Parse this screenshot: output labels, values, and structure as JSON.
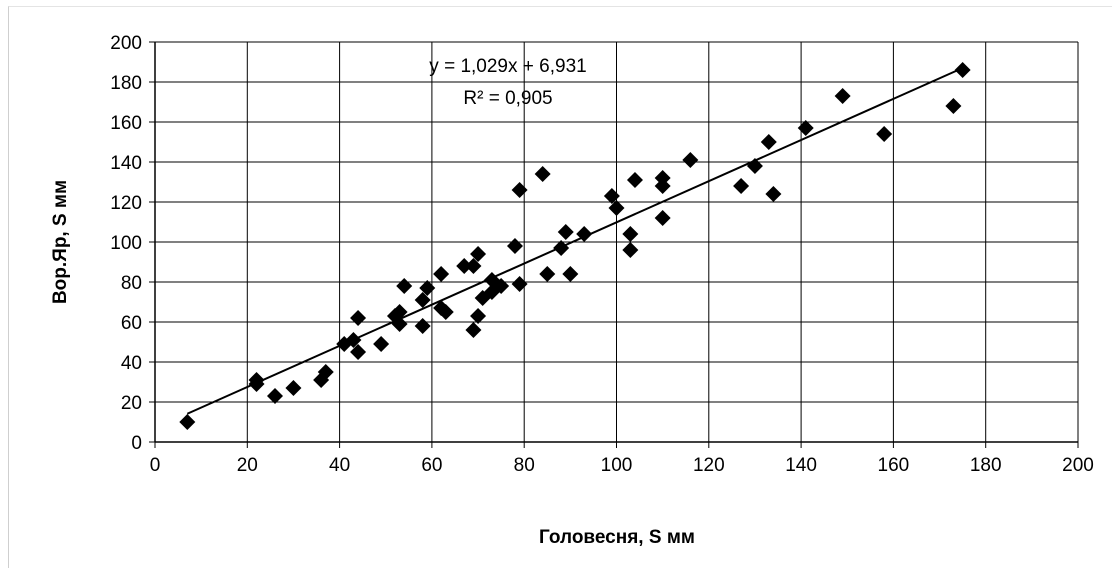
{
  "chart_data": {
    "type": "scatter",
    "title": "",
    "xlabel": "Головесня, S мм",
    "ylabel": "Вор.Яр, S мм",
    "xlim": [
      0,
      200
    ],
    "ylim": [
      0,
      200
    ],
    "x_ticks": [
      "0",
      "20",
      "40",
      "60",
      "80",
      "100",
      "120",
      "140",
      "160",
      "180",
      "200"
    ],
    "y_ticks": [
      "0",
      "20",
      "40",
      "60",
      "80",
      "100",
      "120",
      "140",
      "160",
      "180",
      "200"
    ],
    "grid": "on",
    "marker": "diamond",
    "marker_color": "#000000",
    "trendline": {
      "slope": 1.029,
      "intercept": 6.931,
      "x_range": [
        7,
        175
      ],
      "equation_label": "y = 1,029x + 6,931",
      "r2_label": "R² = 0,905"
    },
    "points": [
      [
        7,
        10
      ],
      [
        22,
        31
      ],
      [
        22,
        29
      ],
      [
        26,
        23
      ],
      [
        30,
        27
      ],
      [
        36,
        31
      ],
      [
        37,
        35
      ],
      [
        41,
        49
      ],
      [
        43,
        51
      ],
      [
        44,
        45
      ],
      [
        44,
        62
      ],
      [
        49,
        49
      ],
      [
        52,
        63
      ],
      [
        53,
        59
      ],
      [
        53,
        65
      ],
      [
        54,
        78
      ],
      [
        58,
        58
      ],
      [
        58,
        71
      ],
      [
        59,
        77
      ],
      [
        62,
        84
      ],
      [
        62,
        67
      ],
      [
        63,
        65
      ],
      [
        67,
        88
      ],
      [
        69,
        88
      ],
      [
        69,
        56
      ],
      [
        70,
        94
      ],
      [
        70,
        63
      ],
      [
        71,
        72
      ],
      [
        73,
        75
      ],
      [
        73,
        81
      ],
      [
        75,
        78
      ],
      [
        78,
        98
      ],
      [
        79,
        126
      ],
      [
        79,
        79
      ],
      [
        84,
        134
      ],
      [
        85,
        84
      ],
      [
        88,
        97
      ],
      [
        89,
        105
      ],
      [
        90,
        84
      ],
      [
        93,
        104
      ],
      [
        99,
        123
      ],
      [
        100,
        117
      ],
      [
        103,
        104
      ],
      [
        103,
        96
      ],
      [
        104,
        131
      ],
      [
        110,
        132
      ],
      [
        110,
        128
      ],
      [
        110,
        112
      ],
      [
        116,
        141
      ],
      [
        127,
        128
      ],
      [
        130,
        138
      ],
      [
        133,
        150
      ],
      [
        134,
        124
      ],
      [
        141,
        157
      ],
      [
        149,
        173
      ],
      [
        158,
        154
      ],
      [
        173,
        168
      ],
      [
        175,
        186
      ]
    ]
  }
}
